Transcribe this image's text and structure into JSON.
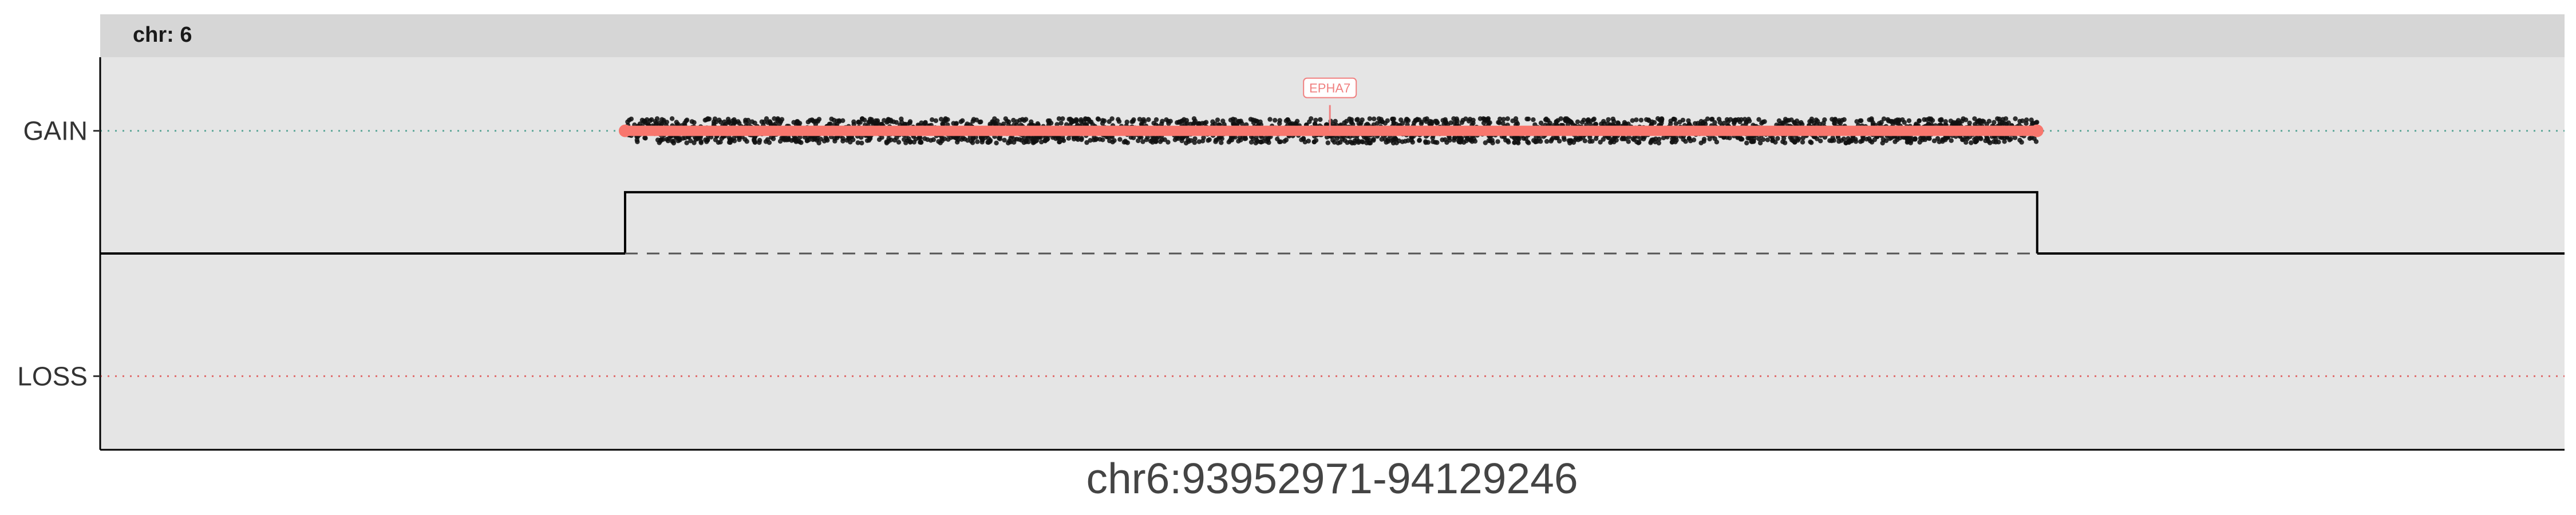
{
  "chart_data": {
    "type": "scatter",
    "facet_label": "chr: 6",
    "xlabel": "chr6:93952971-94129246",
    "region": {
      "chrom": "chr6",
      "start": 93952971,
      "end": 94129246
    },
    "y_levels": [
      {
        "label": "GAIN",
        "value": 1,
        "guide_color": "#5fa89a"
      },
      {
        "label": "LOSS",
        "value": -1,
        "guide_color": "#e06b6b"
      }
    ],
    "ylim": [
      -1.6,
      1.6
    ],
    "xlim": [
      0,
      1
    ],
    "segments": [
      {
        "name": "baseline-left",
        "x": [
          0,
          0.213
        ],
        "y": 0,
        "color": "#000000",
        "style": "solid"
      },
      {
        "name": "gain-step",
        "x": [
          0.213,
          0.786
        ],
        "y": 0.5,
        "color": "#000000",
        "style": "step"
      },
      {
        "name": "baseline-right",
        "x": [
          0.786,
          1
        ],
        "y": 0,
        "color": "#000000",
        "style": "solid"
      },
      {
        "name": "baseline-dashed",
        "x": [
          0.213,
          0.786
        ],
        "y": 0,
        "color": "#555555",
        "style": "dashed"
      }
    ],
    "gain_call": {
      "x": [
        0.213,
        0.786
      ],
      "y": 1,
      "color": "#f8766d",
      "point_noise": 0.1,
      "point_color": "#111111"
    },
    "annotations": [
      {
        "text": "EPHA7",
        "x": 0.499,
        "y": 1,
        "color": "#f08080"
      }
    ],
    "colors": {
      "panel_bg": "#e5e5e5",
      "strip_bg": "#d6d6d6",
      "axis": "#000000"
    }
  }
}
